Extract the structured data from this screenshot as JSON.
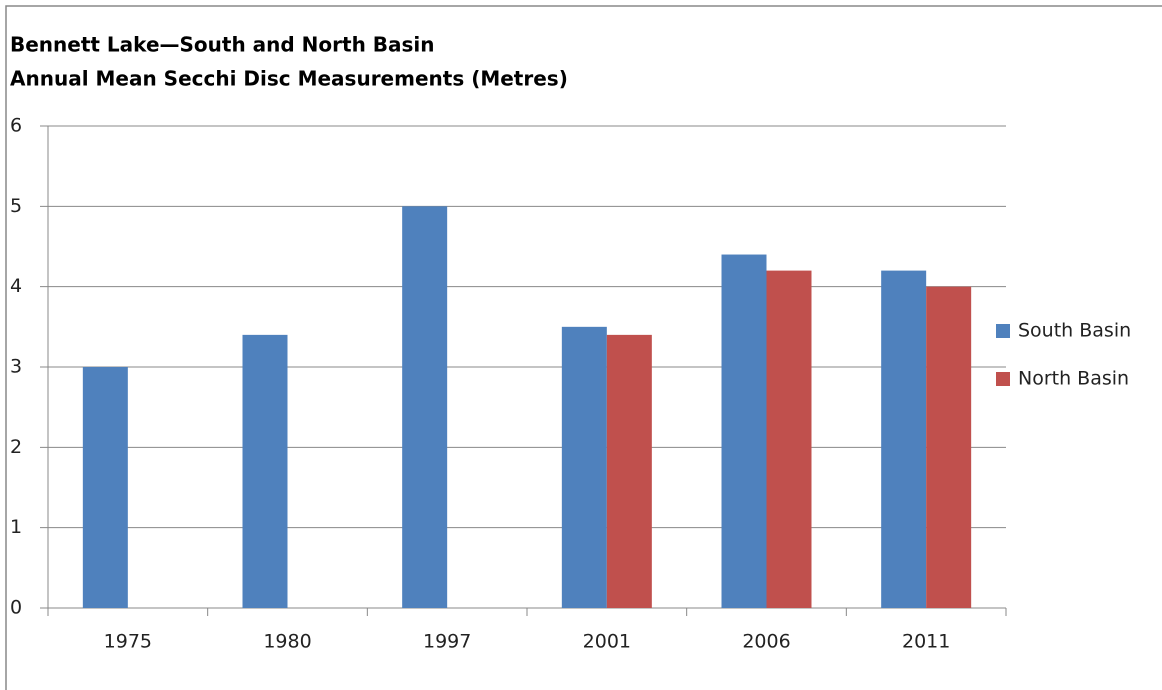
{
  "chart_data": {
    "type": "bar",
    "title": "Bennett Lake—South and North Basin",
    "subtitle": "Annual Mean Secchi Disc Measurements (Metres)",
    "categories": [
      "1975",
      "1980",
      "1997",
      "2001",
      "2006",
      "2011"
    ],
    "series": [
      {
        "name": "South Basin",
        "color": "#4f81bd",
        "values": [
          3,
          3.4,
          5,
          3.5,
          4.4,
          4.2
        ]
      },
      {
        "name": "North Basin",
        "color": "#c0504d",
        "values": [
          null,
          null,
          null,
          3.4,
          4.2,
          4.0
        ]
      }
    ],
    "ylim": [
      0,
      6
    ],
    "yticks": [
      0,
      1,
      2,
      3,
      4,
      5,
      6
    ],
    "grid": true,
    "legend": "right"
  }
}
